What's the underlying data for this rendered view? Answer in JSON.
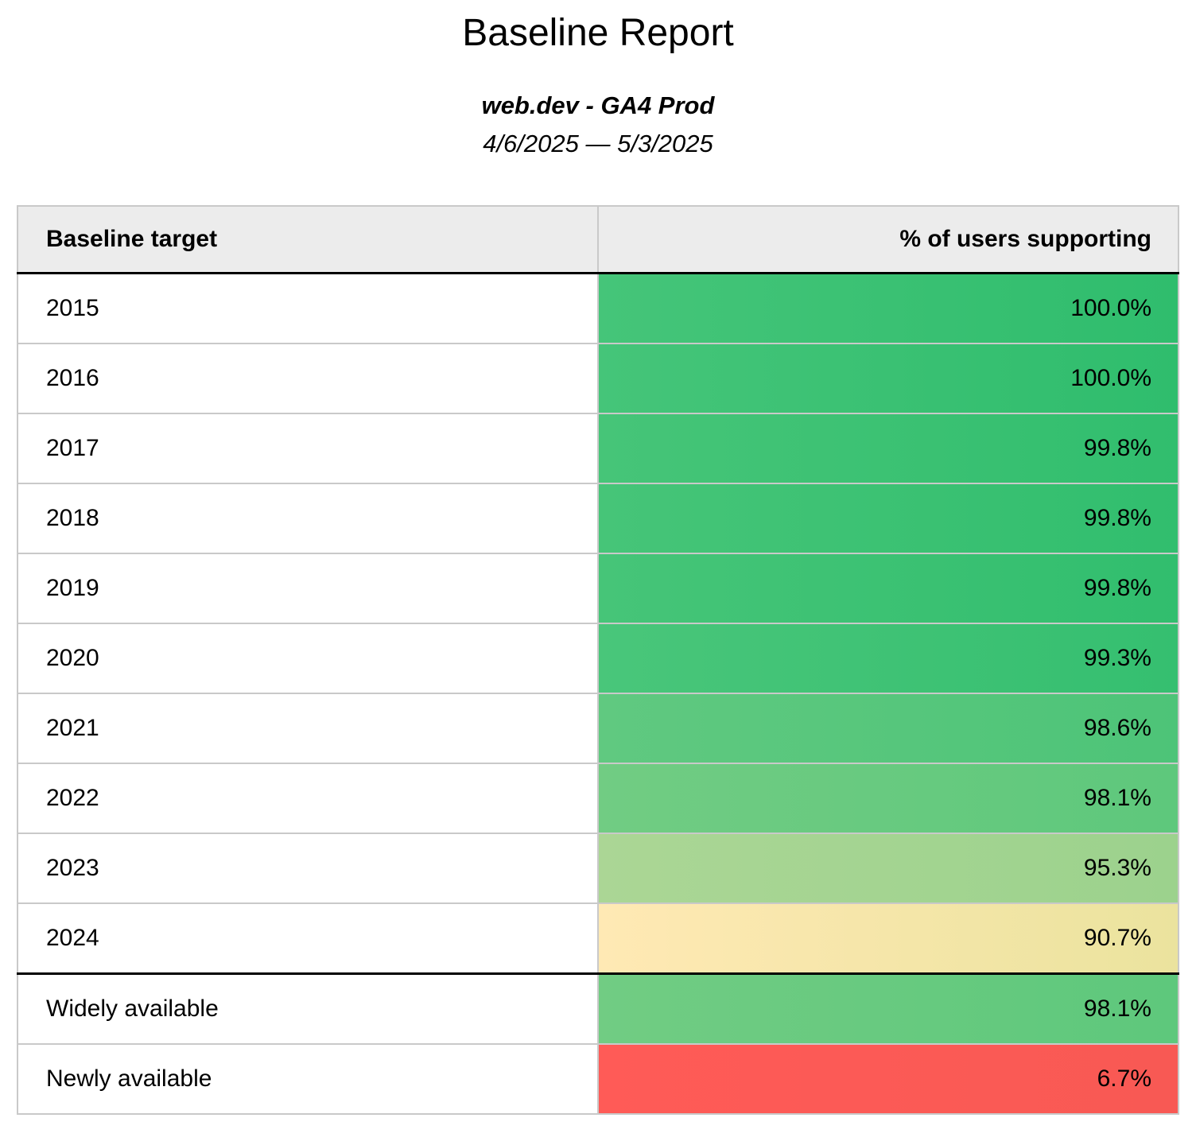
{
  "page": {
    "title": "Baseline Report",
    "subtitle": "web.dev - GA4 Prod",
    "date_range": "4/6/2025 — 5/3/2025"
  },
  "colors": {
    "header_bg": "#ececec",
    "row_border": "#c9c9c9",
    "strong_border": "#000000",
    "text": "#000000",
    "good_green": "#3cc274",
    "warn_yellow": "#f6e6a9",
    "bad_red": "#fb5955"
  },
  "table": {
    "columns": [
      {
        "label": "Baseline target"
      },
      {
        "label": "% of users supporting"
      }
    ],
    "rows": [
      {
        "label": "2015",
        "value": "100.0%",
        "color_left": "#45c579",
        "color_right": "#2fbd6d",
        "section_start": false
      },
      {
        "label": "2016",
        "value": "100.0%",
        "color_left": "#45c579",
        "color_right": "#2fbd6d",
        "section_start": false
      },
      {
        "label": "2017",
        "value": "99.8%",
        "color_left": "#46c578",
        "color_right": "#31be6e",
        "section_start": false
      },
      {
        "label": "2018",
        "value": "99.8%",
        "color_left": "#46c578",
        "color_right": "#31be6e",
        "section_start": false
      },
      {
        "label": "2019",
        "value": "99.8%",
        "color_left": "#46c578",
        "color_right": "#31be6e",
        "section_start": false
      },
      {
        "label": "2020",
        "value": "99.3%",
        "color_left": "#49c67a",
        "color_right": "#35bf70",
        "section_start": false
      },
      {
        "label": "2021",
        "value": "98.6%",
        "color_left": "#60c980",
        "color_right": "#4dc478",
        "section_start": false
      },
      {
        "label": "2022",
        "value": "98.1%",
        "color_left": "#71cc83",
        "color_right": "#5ec87c",
        "section_start": false
      },
      {
        "label": "2023",
        "value": "95.3%",
        "color_left": "#abd695",
        "color_right": "#9cd28d",
        "section_start": false
      },
      {
        "label": "2024",
        "value": "90.7%",
        "color_left": "#ffe9b4",
        "color_right": "#ebe39e",
        "section_start": false
      },
      {
        "label": "Widely available",
        "value": "98.1%",
        "color_left": "#71cc83",
        "color_right": "#5ec87c",
        "section_start": true
      },
      {
        "label": "Newly available",
        "value": "6.7%",
        "color_left": "#ff5b57",
        "color_right": "#f85954",
        "section_start": false
      }
    ]
  },
  "chart_data": {
    "type": "table",
    "title": "Baseline Report",
    "subtitle": "web.dev - GA4 Prod",
    "date_range": "4/6/2025 — 5/3/2025",
    "columns": [
      "Baseline target",
      "% of users supporting"
    ],
    "categories": [
      "2015",
      "2016",
      "2017",
      "2018",
      "2019",
      "2020",
      "2021",
      "2022",
      "2023",
      "2024",
      "Widely available",
      "Newly available"
    ],
    "values": [
      100.0,
      100.0,
      99.8,
      99.8,
      99.8,
      99.3,
      98.6,
      98.1,
      95.3,
      90.7,
      98.1,
      6.7
    ],
    "value_unit": "%",
    "color_scale": "green (high support) to yellow to red (low support), applied to value cells"
  }
}
